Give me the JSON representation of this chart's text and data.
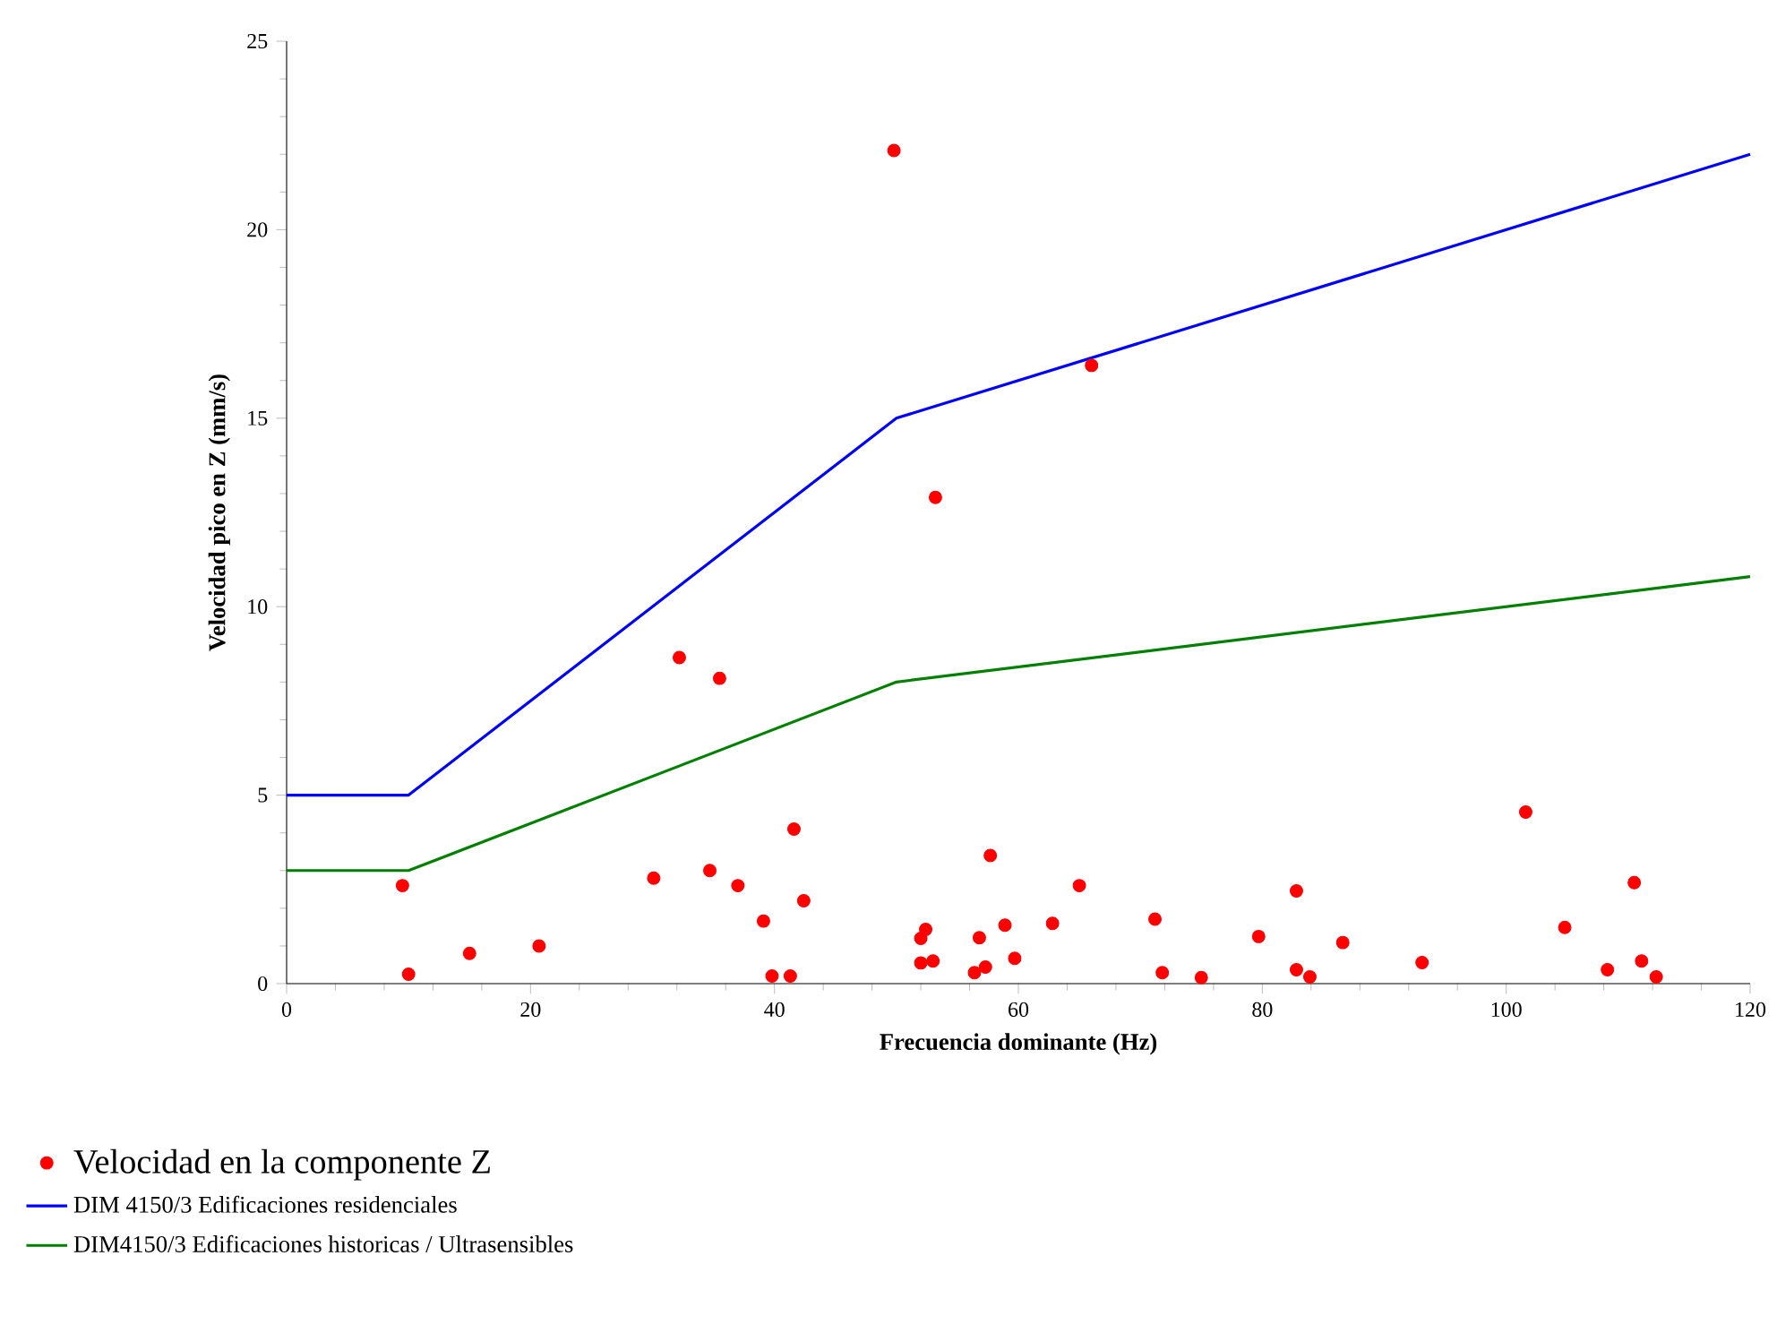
{
  "chart_data": {
    "type": "scatter",
    "xlabel": "Frecuencia dominante (Hz)",
    "ylabel": "Velocidad pico en Z (mm/s)",
    "xlim": [
      0,
      120
    ],
    "ylim": [
      0,
      25
    ],
    "xticks": [
      0,
      20,
      40,
      60,
      80,
      100,
      120
    ],
    "yticks": [
      0,
      5,
      10,
      15,
      20,
      25
    ],
    "grid": false,
    "legend": "bottom",
    "series": [
      {
        "name": "Velocidad en la componente Z",
        "marker": "circle",
        "color": "#ff0000",
        "x": [
          9.5,
          10.0,
          15.0,
          20.7,
          30.1,
          32.2,
          34.7,
          35.5,
          37.0,
          39.1,
          39.8,
          41.3,
          41.6,
          42.4,
          49.8,
          52.0,
          52.0,
          52.4,
          53.0,
          53.2,
          56.4,
          56.8,
          57.3,
          57.7,
          58.9,
          59.7,
          62.8,
          65.0,
          66.0,
          71.2,
          71.8,
          75.0,
          79.7,
          82.8,
          82.8,
          83.9,
          86.6,
          93.1,
          101.6,
          104.8,
          108.3,
          110.5,
          111.1,
          112.3
        ],
        "values": [
          2.6,
          0.25,
          0.8,
          1.0,
          2.8,
          8.65,
          3.0,
          8.1,
          2.6,
          1.66,
          0.2,
          0.2,
          4.1,
          2.2,
          22.1,
          0.55,
          1.2,
          1.44,
          0.6,
          12.9,
          0.29,
          1.22,
          0.44,
          3.4,
          1.55,
          0.67,
          1.6,
          2.6,
          16.4,
          1.71,
          0.29,
          0.16,
          1.25,
          2.46,
          0.37,
          0.18,
          1.09,
          0.56,
          4.55,
          1.49,
          0.37,
          2.68,
          0.6,
          0.18
        ]
      },
      {
        "name": "DIM 4150/3 Edificaciones residenciales",
        "type": "line",
        "color": "#0000ff",
        "x": [
          0,
          10,
          50,
          120
        ],
        "values": [
          5,
          5,
          15,
          22
        ]
      },
      {
        "name": "DIM4150/3 Edificaciones historicas / Ultrasensibles",
        "type": "line",
        "color": "#008000",
        "x": [
          0,
          10,
          50,
          120
        ],
        "values": [
          3,
          3,
          8,
          10.8
        ]
      }
    ]
  }
}
